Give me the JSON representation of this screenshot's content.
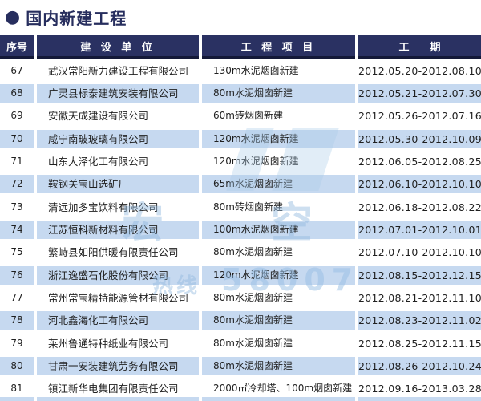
{
  "title_bullet": "●",
  "page_title": "国内新建工程",
  "table": {
    "headers": [
      "序号",
      "建 设 单 位",
      "工 程 项 目",
      "工　　期"
    ],
    "rows": [
      {
        "no": "67",
        "company": "武汉常阳新力建设工程有限公司",
        "project": "130m水泥烟囱新建",
        "period": "2012.05.20-2012.08.10"
      },
      {
        "no": "68",
        "company": "广灵县标泰建筑安装有限公司",
        "project": "80m水泥烟囱新建",
        "period": "2012.05.21-2012.07.30"
      },
      {
        "no": "69",
        "company": "安徽天成建设有限公司",
        "project": "60m砖烟囱新建",
        "period": "2012.05.26-2012.07.16"
      },
      {
        "no": "70",
        "company": "咸宁南玻玻璃有限公司",
        "project": "120m水泥烟囱新建",
        "period": "2012.05.30-2012.10.09"
      },
      {
        "no": "71",
        "company": "山东大泽化工有限公司",
        "project": "120m水泥烟囱新建",
        "period": "2012.06.05-2012.08.25"
      },
      {
        "no": "72",
        "company": "鞍钢关宝山选矿厂",
        "project": "65m水泥烟囱新建",
        "period": "2012.06.10-2012.10.10"
      },
      {
        "no": "73",
        "company": "清远加多宝饮料有限公司",
        "project": "80m砖烟囱新建",
        "period": "2012.06.18-2012.08.22"
      },
      {
        "no": "74",
        "company": "江苏恒科新材料有限公司",
        "project": "100m水泥烟囱新建",
        "period": "2012.07.01-2012.10.01"
      },
      {
        "no": "75",
        "company": "繁峙县如阳供暖有限责任公司",
        "project": "80m水泥烟囱新建",
        "period": "2012.07.10-2012.10.10"
      },
      {
        "no": "76",
        "company": "浙江逸盛石化股份有限公司",
        "project": "120m水泥烟囱新建",
        "period": "2012.08.15-2012.12.15"
      },
      {
        "no": "77",
        "company": "常州常宝精特能源管材有限公司",
        "project": "80m水泥烟囱新建",
        "period": "2012.08.21-2012.11.10"
      },
      {
        "no": "78",
        "company": "河北鑫海化工有限公司",
        "project": "80m水泥烟囱新建",
        "period": "2012.08.23-2012.11.02"
      },
      {
        "no": "79",
        "company": "莱州鲁通特种纸业有限公司",
        "project": "80m水泥烟囱新建",
        "period": "2012.08.25-2012.11.15"
      },
      {
        "no": "80",
        "company": "甘肃一安装建筑劳务有限公司",
        "project": "80m水泥烟囱新建",
        "period": "2012.08.26-2012.10.24"
      },
      {
        "no": "81",
        "company": "镇江新华电集团有限责任公司",
        "project": "2000㎡冷却塔、100m烟囱新建",
        "period": "2012.09.16-2013.03.28"
      }
    ]
  },
  "watermark": {
    "fragments": [
      "宏",
      "空",
      "热线",
      "58007"
    ]
  },
  "colors": {
    "navy": "#2a3162",
    "stripe": "#c6d9f0",
    "text": "#1f1f1f",
    "watermark": "#91b7de"
  }
}
